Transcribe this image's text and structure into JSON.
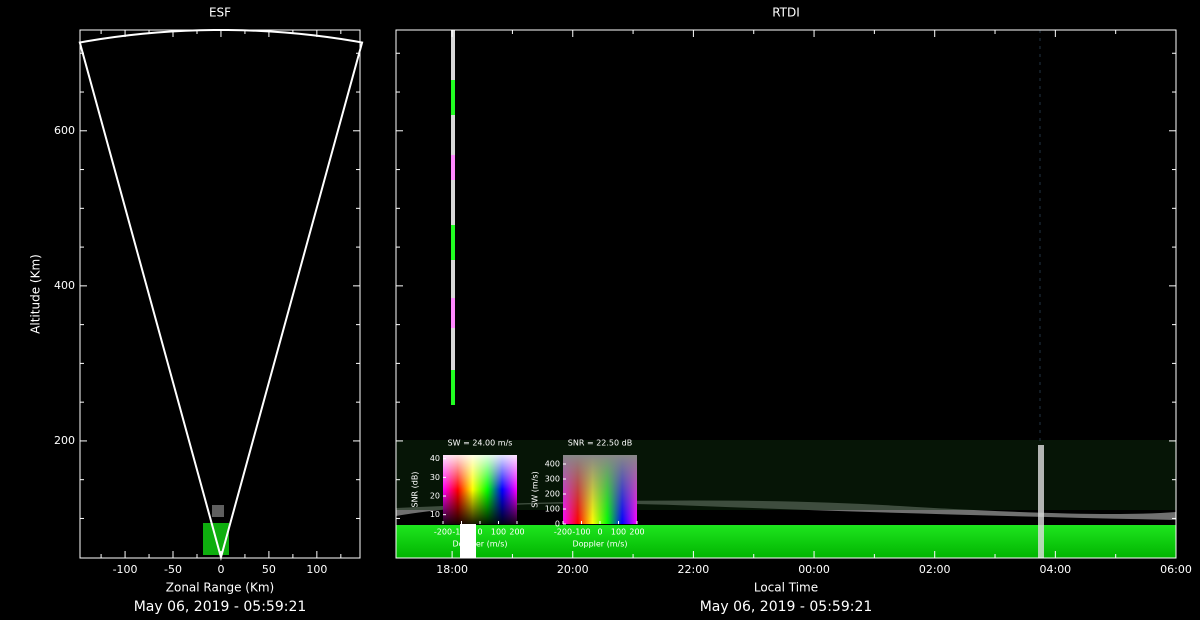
{
  "chart_data": [
    {
      "type": "sector",
      "title": "ESF",
      "xlabel": "Zonal Range (Km)",
      "ylabel": "Altitude (Km)",
      "footer": "May 06, 2019 - 05:59:21",
      "xlim": [
        -147,
        145
      ],
      "ylim": [
        49,
        730
      ],
      "xticks": [
        -100,
        -50,
        0,
        50,
        100
      ],
      "xminorticks": [
        -125,
        -75,
        -25,
        25,
        75,
        125
      ],
      "yticks": [
        200,
        400,
        600
      ],
      "yminorticks": [
        100,
        150,
        250,
        300,
        350,
        450,
        500,
        550,
        650,
        700
      ],
      "apex": [
        0,
        50
      ],
      "half_angle": 12.5,
      "max_range": 680,
      "color": "#ffffff"
    },
    {
      "type": "rtdi",
      "title": "RTDI",
      "xlabel": "Local Time",
      "footer": "May 06, 2019 - 05:59:21",
      "xlim": [
        17.07,
        30
      ],
      "xticks": [
        {
          "value": 18,
          "label": "18:00"
        },
        {
          "value": 20,
          "label": "20:00"
        },
        {
          "value": 22,
          "label": "22:00"
        },
        {
          "value": 24,
          "label": "00:00"
        },
        {
          "value": 26,
          "label": "02:00"
        },
        {
          "value": 28,
          "label": "04:00"
        },
        {
          "value": 30,
          "label": "06:00"
        }
      ],
      "xminorticks": [
        19,
        21,
        23,
        25,
        27,
        29
      ],
      "ylim": [
        49,
        730
      ],
      "yticks": [
        200,
        400,
        600
      ],
      "yminorticks": [
        100,
        150,
        250,
        300,
        350,
        450,
        500,
        550,
        650,
        700
      ]
    },
    {
      "type": "colormap",
      "title": "SW = 24.00 m/s",
      "xlabel": "Doppler (m/s)",
      "ylabel": "SNR (dB)",
      "xlim": [
        -200,
        200
      ],
      "xticks": [
        -200,
        -100,
        0,
        100,
        200
      ],
      "ylim": [
        5,
        42
      ],
      "yticks": [
        10,
        20,
        30,
        40
      ]
    },
    {
      "type": "colormap",
      "title": "SNR = 22.50 dB",
      "xlabel": "Doppler (m/s)",
      "ylabel": "SW (m/s)",
      "xlim": [
        -200,
        200
      ],
      "xticks": [
        -200,
        -100,
        0,
        100,
        200
      ],
      "ylim": [
        0,
        460
      ],
      "yticks": [
        0,
        100,
        200,
        300,
        400
      ]
    }
  ]
}
